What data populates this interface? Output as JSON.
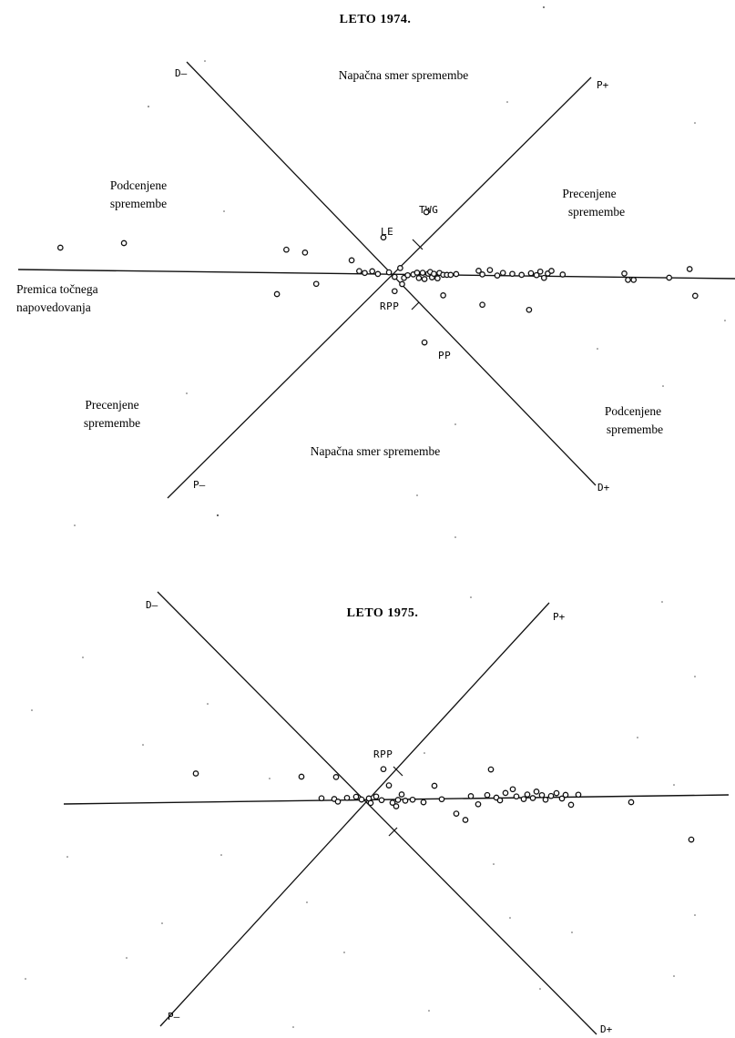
{
  "chart_data": [
    {
      "type": "scatter",
      "title": "LETO 1974.",
      "axis_ends": {
        "d_minus": "D–",
        "p_plus": "P+",
        "p_minus": "P–",
        "d_plus": "D+"
      },
      "regions": {
        "top": "Napačna smer spremembe",
        "bottom": "Napačna smer spremembe",
        "upper_left": [
          "Podcenjene",
          "spremembe"
        ],
        "upper_right": [
          "Precenjene",
          "spremembe"
        ],
        "lower_left": [
          "Precenjene",
          "spremembe"
        ],
        "lower_right": [
          "Podcenjene",
          "spremembe"
        ],
        "perfect_line": [
          "Premica točnega",
          "napovedovanja"
        ]
      },
      "labeled_points": [
        {
          "label": "LE",
          "x": 0.0,
          "y": 4.1
        },
        {
          "label": "TWG",
          "x": 2.3,
          "y": 7.0
        },
        {
          "label": "RPP",
          "x": 0.6,
          "y": -1.9
        },
        {
          "label": "PP",
          "x": 2.2,
          "y": -7.6
        }
      ],
      "points": [
        [
          -17.3,
          2.5
        ],
        [
          -13.9,
          3.1
        ],
        [
          -5.2,
          2.6
        ],
        [
          -4.2,
          2.3
        ],
        [
          -3.6,
          -1.2
        ],
        [
          -5.7,
          -2.4
        ],
        [
          -1.7,
          1.5
        ],
        [
          -1.3,
          0.3
        ],
        [
          -1.0,
          0.1
        ],
        [
          -0.6,
          0.3
        ],
        [
          -0.3,
          0.0
        ],
        [
          0.3,
          0.2
        ],
        [
          0.6,
          -0.3
        ],
        [
          0.9,
          0.7
        ],
        [
          1.1,
          -0.4
        ],
        [
          1.3,
          -0.1
        ],
        [
          1.6,
          0.0
        ],
        [
          1.8,
          0.2
        ],
        [
          1.9,
          -0.4
        ],
        [
          2.1,
          0.2
        ],
        [
          2.2,
          -0.5
        ],
        [
          2.4,
          0.1
        ],
        [
          2.5,
          0.3
        ],
        [
          2.6,
          -0.3
        ],
        [
          2.7,
          0.1
        ],
        [
          2.9,
          -0.4
        ],
        [
          3.0,
          0.2
        ],
        [
          3.2,
          0.0
        ],
        [
          3.4,
          0.0
        ],
        [
          3.6,
          0.0
        ],
        [
          3.9,
          0.1
        ],
        [
          1.0,
          -1.1
        ],
        [
          3.2,
          -2.3
        ],
        [
          5.1,
          0.5
        ],
        [
          5.3,
          0.1
        ],
        [
          5.7,
          0.6
        ],
        [
          6.1,
          0.0
        ],
        [
          6.4,
          0.3
        ],
        [
          5.3,
          -3.3
        ],
        [
          6.9,
          0.2
        ],
        [
          7.4,
          0.1
        ],
        [
          7.9,
          0.3
        ],
        [
          8.2,
          0.1
        ],
        [
          8.4,
          0.5
        ],
        [
          8.6,
          -0.2
        ],
        [
          8.8,
          0.3
        ],
        [
          9.0,
          0.6
        ],
        [
          9.6,
          0.2
        ],
        [
          7.8,
          -3.8
        ],
        [
          12.9,
          0.4
        ],
        [
          13.1,
          -0.3
        ],
        [
          13.4,
          -0.3
        ],
        [
          15.3,
          0.0
        ],
        [
          16.4,
          1.0
        ],
        [
          16.7,
          -2.0
        ]
      ]
    },
    {
      "type": "scatter",
      "title": "LETO 1975.",
      "axis_ends": {
        "d_minus": "D–",
        "p_plus": "P+",
        "p_minus": "P–",
        "d_plus": "D+"
      },
      "labeled_points": [
        {
          "label": "RPP",
          "x": 1.0,
          "y": 3.4
        }
      ],
      "points": [
        [
          -9.3,
          3.2
        ],
        [
          -3.5,
          2.7
        ],
        [
          -1.6,
          2.6
        ],
        [
          -2.4,
          0.3
        ],
        [
          -1.7,
          0.2
        ],
        [
          -1.5,
          -0.1
        ],
        [
          -1.0,
          0.3
        ],
        [
          -0.5,
          0.4
        ],
        [
          -0.2,
          0.1
        ],
        [
          0.2,
          0.2
        ],
        [
          0.3,
          -0.3
        ],
        [
          0.6,
          0.4
        ],
        [
          0.9,
          0.0
        ],
        [
          1.3,
          1.6
        ],
        [
          1.5,
          -0.3
        ],
        [
          1.7,
          -0.7
        ],
        [
          1.8,
          0.0
        ],
        [
          2.0,
          0.6
        ],
        [
          2.2,
          -0.1
        ],
        [
          2.6,
          0.0
        ],
        [
          3.2,
          -0.3
        ],
        [
          3.8,
          1.5
        ],
        [
          4.2,
          0.0
        ],
        [
          5.0,
          -1.6
        ],
        [
          5.5,
          -2.3
        ],
        [
          5.8,
          0.3
        ],
        [
          6.2,
          -0.6
        ],
        [
          6.7,
          0.4
        ],
        [
          7.2,
          0.1
        ],
        [
          7.4,
          -0.2
        ],
        [
          7.7,
          0.6
        ],
        [
          8.1,
          1.0
        ],
        [
          8.3,
          0.2
        ],
        [
          8.7,
          -0.1
        ],
        [
          8.9,
          0.4
        ],
        [
          9.2,
          0.0
        ],
        [
          9.4,
          0.7
        ],
        [
          9.7,
          0.3
        ],
        [
          9.9,
          -0.2
        ],
        [
          10.2,
          0.2
        ],
        [
          10.5,
          0.5
        ],
        [
          10.8,
          -0.1
        ],
        [
          11.0,
          0.3
        ],
        [
          11.3,
          -0.8
        ],
        [
          11.7,
          0.3
        ],
        [
          6.9,
          3.2
        ],
        [
          14.6,
          -0.6
        ],
        [
          17.9,
          -4.8
        ]
      ]
    }
  ]
}
